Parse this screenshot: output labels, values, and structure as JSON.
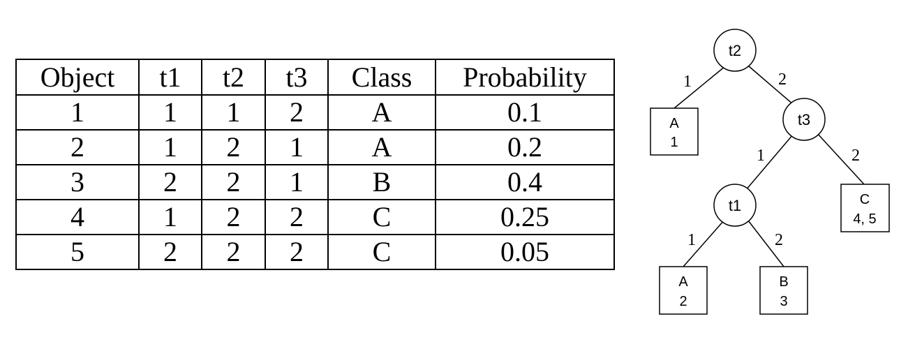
{
  "table": {
    "headers": [
      "Object",
      "t1",
      "t2",
      "t3",
      "Class",
      "Probability"
    ],
    "rows": [
      [
        "1",
        "1",
        "1",
        "2",
        "A",
        "0.1"
      ],
      [
        "2",
        "1",
        "2",
        "1",
        "A",
        "0.2"
      ],
      [
        "3",
        "2",
        "2",
        "1",
        "B",
        "0.4"
      ],
      [
        "4",
        "1",
        "2",
        "2",
        "C",
        "0.25"
      ],
      [
        "5",
        "2",
        "2",
        "2",
        "C",
        "0.05"
      ]
    ]
  },
  "tree": {
    "nodes": {
      "t2": "t2",
      "t3": "t3",
      "t1": "t1"
    },
    "leaves": {
      "leaf_a1": {
        "class": "A",
        "objects": "1"
      },
      "leaf_c45": {
        "class": "C",
        "objects": "4, 5"
      },
      "leaf_a2": {
        "class": "A",
        "objects": "2"
      },
      "leaf_b3": {
        "class": "B",
        "objects": "3"
      }
    },
    "edges": {
      "t2_left": "1",
      "t2_right": "2",
      "t3_left": "1",
      "t3_right": "2",
      "t1_left": "1",
      "t1_right": "2"
    }
  }
}
